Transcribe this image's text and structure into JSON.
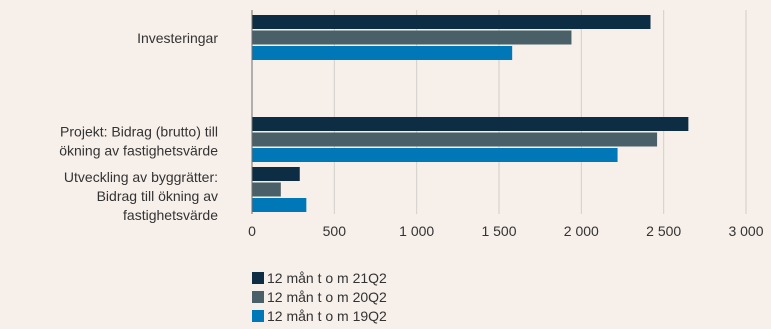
{
  "chart_data": {
    "type": "bar",
    "orientation": "horizontal",
    "categories": [
      "Investeringar",
      "",
      "Projekt: Bidrag (brutto) till ökning av fastighetsvärde",
      "Utveckling av byggrätter: Bidrag till ökning av fastighetsvärde"
    ],
    "category_lines": [
      [
        "Investeringar"
      ],
      [],
      [
        "Projekt: Bidrag (brutto) till",
        "ökning av fastighetsvärde"
      ],
      [
        "Utveckling av byggrätter:",
        "Bidrag till ökning av",
        "fastighetsvärde"
      ]
    ],
    "series": [
      {
        "name": "12 mån t o m 21Q2",
        "color": "#0d2d44",
        "values": [
          2420,
          0,
          2650,
          290
        ]
      },
      {
        "name": "12 mån t o m 20Q2",
        "color": "#4a6068",
        "values": [
          1940,
          0,
          2460,
          175
        ]
      },
      {
        "name": "12 mån t o m 19Q2",
        "color": "#0077b6",
        "values": [
          1580,
          0,
          2220,
          330
        ]
      }
    ],
    "xlim": [
      0,
      3000
    ],
    "xticks": [
      0,
      500,
      1000,
      1500,
      2000,
      2500,
      3000
    ],
    "xtick_labels": [
      "0",
      "500",
      "1 000",
      "1 500",
      "2 000",
      "2 500",
      "3 000"
    ],
    "grid": "vertical",
    "grid_color": "#d2cecb",
    "legend_position": "bottom-left"
  }
}
